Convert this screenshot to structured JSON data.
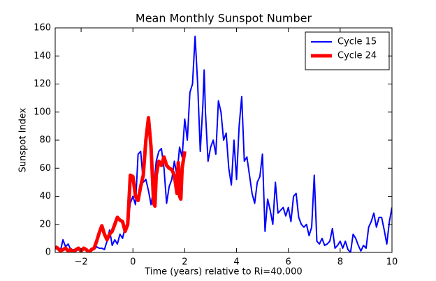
{
  "chart_data": {
    "type": "line",
    "title": "Mean Monthly Sunspot Number",
    "x_label": "Time (years) relative to Ri=40.000",
    "y_label": "Sunspot Index",
    "xlim": [
      -3,
      10
    ],
    "ylim": [
      0,
      160
    ],
    "xticks": [
      {
        "value": -2,
        "label": "−2"
      },
      0,
      2,
      4,
      6,
      8,
      10
    ],
    "yticks": [
      0,
      20,
      40,
      60,
      80,
      100,
      120,
      140,
      160
    ],
    "grid": false,
    "legend": "upper right",
    "series": [
      {
        "name": "Cycle 15",
        "color": "#0000ff",
        "width": 2,
        "x": [
          -3.0,
          -2.9,
          -2.8,
          -2.7,
          -2.6,
          -2.5,
          -2.4,
          -2.3,
          -2.2,
          -2.1,
          -2.0,
          -1.9,
          -1.8,
          -1.7,
          -1.6,
          -1.5,
          -1.4,
          -1.3,
          -1.2,
          -1.1,
          -1.0,
          -0.9,
          -0.8,
          -0.7,
          -0.6,
          -0.5,
          -0.4,
          -0.3,
          -0.2,
          -0.1,
          0.0,
          0.1,
          0.2,
          0.3,
          0.4,
          0.5,
          0.6,
          0.7,
          0.8,
          0.9,
          1.0,
          1.1,
          1.2,
          1.3,
          1.4,
          1.5,
          1.6,
          1.7,
          1.8,
          1.9,
          2.0,
          2.1,
          2.2,
          2.3,
          2.4,
          2.5,
          2.6,
          2.7,
          2.75,
          2.8,
          2.9,
          3.0,
          3.1,
          3.2,
          3.3,
          3.4,
          3.5,
          3.6,
          3.7,
          3.8,
          3.9,
          4.0,
          4.1,
          4.2,
          4.3,
          4.4,
          4.5,
          4.6,
          4.7,
          4.8,
          4.9,
          5.0,
          5.1,
          5.2,
          5.3,
          5.4,
          5.5,
          5.6,
          5.7,
          5.8,
          5.9,
          6.0,
          6.1,
          6.2,
          6.3,
          6.4,
          6.5,
          6.6,
          6.7,
          6.8,
          6.9,
          7.0,
          7.1,
          7.2,
          7.3,
          7.4,
          7.5,
          7.6,
          7.7,
          7.8,
          7.9,
          8.0,
          8.1,
          8.2,
          8.3,
          8.4,
          8.5,
          8.6,
          8.7,
          8.8,
          8.9,
          9.0,
          9.1,
          9.2,
          9.3,
          9.4,
          9.5,
          9.6,
          9.7,
          9.8,
          9.9,
          10.0
        ],
        "values": [
          3,
          2,
          1,
          9,
          4,
          6,
          2,
          2,
          1,
          2,
          1,
          3,
          2,
          1,
          3,
          2,
          4,
          3,
          3,
          2,
          8,
          16,
          5,
          9,
          6,
          13,
          10,
          18,
          20,
          35,
          40,
          34,
          70,
          72,
          50,
          52,
          44,
          34,
          46,
          65,
          72,
          74,
          60,
          35,
          47,
          52,
          65,
          55,
          75,
          68,
          95,
          80,
          114,
          120,
          154,
          120,
          72,
          105,
          130,
          100,
          65,
          75,
          80,
          70,
          108,
          100,
          80,
          85,
          60,
          48,
          80,
          52,
          90,
          111,
          65,
          68,
          55,
          42,
          35,
          50,
          54,
          70,
          15,
          38,
          30,
          20,
          50,
          28,
          30,
          32,
          26,
          32,
          22,
          40,
          42,
          25,
          20,
          18,
          20,
          12,
          18,
          55,
          8,
          6,
          10,
          5,
          6,
          8,
          17,
          3,
          5,
          8,
          3,
          8,
          2,
          0,
          13,
          10,
          5,
          1,
          5,
          3,
          18,
          22,
          28,
          18,
          25,
          25,
          16,
          6,
          22,
          32
        ]
      },
      {
        "name": "Cycle 24",
        "color": "#ff0000",
        "width": 5,
        "x": [
          -3.0,
          -2.9,
          -2.8,
          -2.7,
          -2.6,
          -2.5,
          -2.4,
          -2.3,
          -2.2,
          -2.1,
          -2.0,
          -1.9,
          -1.8,
          -1.7,
          -1.6,
          -1.5,
          -1.4,
          -1.3,
          -1.2,
          -1.1,
          -1.0,
          -0.9,
          -0.8,
          -0.7,
          -0.6,
          -0.5,
          -0.4,
          -0.3,
          -0.2,
          -0.1,
          0.0,
          0.1,
          0.2,
          0.3,
          0.4,
          0.5,
          0.6,
          0.7,
          0.8,
          0.85,
          0.9,
          1.0,
          1.1,
          1.2,
          1.3,
          1.4,
          1.5,
          1.6,
          1.7,
          1.75,
          1.8,
          1.85,
          1.9,
          2.0
        ],
        "values": [
          4,
          3,
          1,
          2,
          3,
          1,
          2,
          0,
          2,
          3,
          1,
          3,
          2,
          0,
          2,
          3,
          8,
          14,
          19,
          13,
          9,
          13,
          15,
          20,
          25,
          23,
          22,
          15,
          20,
          55,
          54,
          40,
          37,
          47,
          55,
          80,
          96,
          75,
          35,
          33,
          55,
          65,
          62,
          68,
          62,
          60,
          59,
          55,
          42,
          64,
          40,
          38,
          60,
          72
        ]
      }
    ]
  }
}
